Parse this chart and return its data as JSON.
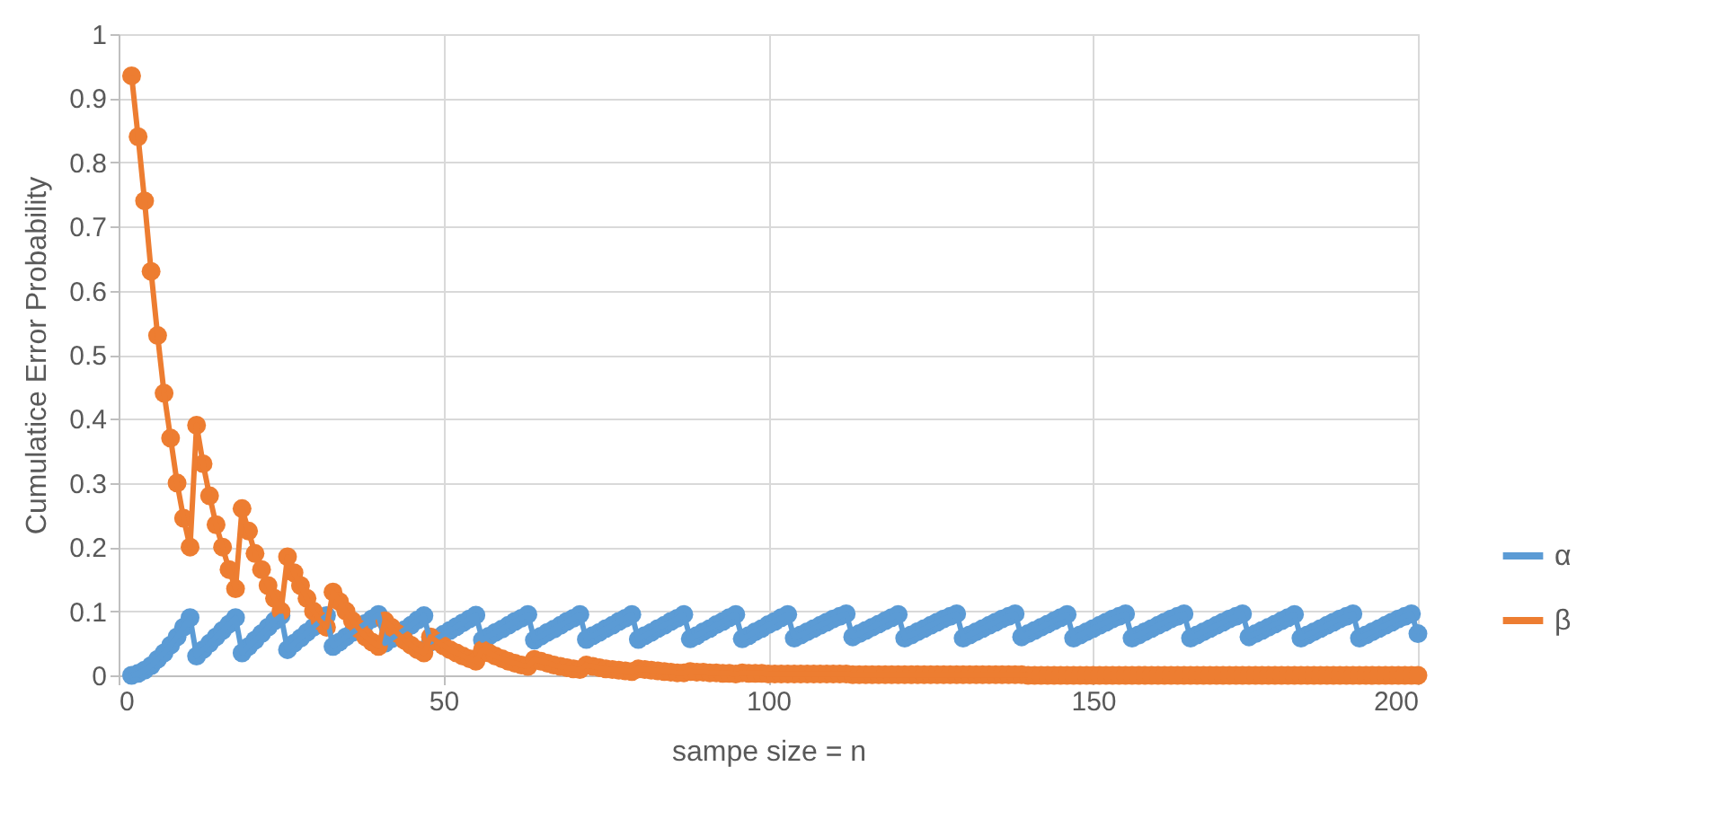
{
  "chart_data": {
    "type": "line",
    "xlabel": "sampe size = n",
    "ylabel": "Cumulatice Error Probability",
    "x": [
      2,
      3,
      4,
      5,
      6,
      7,
      8,
      9,
      10,
      11,
      12,
      13,
      14,
      15,
      16,
      17,
      18,
      19,
      20,
      21,
      22,
      23,
      24,
      25,
      26,
      27,
      28,
      29,
      30,
      31,
      32,
      33,
      34,
      35,
      36,
      37,
      38,
      39,
      40,
      41,
      42,
      43,
      44,
      45,
      46,
      47,
      48,
      49,
      50,
      51,
      52,
      53,
      54,
      55,
      56,
      57,
      58,
      59,
      60,
      61,
      62,
      63,
      64,
      65,
      66,
      67,
      68,
      69,
      70,
      71,
      72,
      73,
      74,
      75,
      76,
      77,
      78,
      79,
      80,
      81,
      82,
      83,
      84,
      85,
      86,
      87,
      88,
      89,
      90,
      91,
      92,
      93,
      94,
      95,
      96,
      97,
      98,
      99,
      100,
      101,
      102,
      103,
      104,
      105,
      106,
      107,
      108,
      109,
      110,
      111,
      112,
      113,
      114,
      115,
      116,
      117,
      118,
      119,
      120,
      121,
      122,
      123,
      124,
      125,
      126,
      127,
      128,
      129,
      130,
      131,
      132,
      133,
      134,
      135,
      136,
      137,
      138,
      139,
      140,
      141,
      142,
      143,
      144,
      145,
      146,
      147,
      148,
      149,
      150,
      151,
      152,
      153,
      154,
      155,
      156,
      157,
      158,
      159,
      160,
      161,
      162,
      163,
      164,
      165,
      166,
      167,
      168,
      169,
      170,
      171,
      172,
      173,
      174,
      175,
      176,
      177,
      178,
      179,
      180,
      181,
      182,
      183,
      184,
      185,
      186,
      187,
      188,
      189,
      190,
      191,
      192,
      193,
      194,
      195,
      196,
      197,
      198,
      199,
      200
    ],
    "series": [
      {
        "name": "α",
        "color": "#5b9bd5",
        "values": [
          0,
          0.003,
          0.008,
          0.015,
          0.025,
          0.035,
          0.047,
          0.06,
          0.075,
          0.09,
          0.03,
          0.04,
          0.05,
          0.06,
          0.07,
          0.08,
          0.09,
          0.035,
          0.045,
          0.055,
          0.065,
          0.075,
          0.085,
          0.093,
          0.04,
          0.05,
          0.058,
          0.067,
          0.075,
          0.085,
          0.093,
          0.045,
          0.052,
          0.06,
          0.067,
          0.074,
          0.081,
          0.088,
          0.095,
          0.05,
          0.057,
          0.064,
          0.071,
          0.078,
          0.086,
          0.093,
          0.052,
          0.058,
          0.064,
          0.07,
          0.076,
          0.082,
          0.088,
          0.094,
          0.055,
          0.061,
          0.067,
          0.072,
          0.078,
          0.084,
          0.089,
          0.095,
          0.055,
          0.061,
          0.067,
          0.072,
          0.078,
          0.084,
          0.089,
          0.095,
          0.056,
          0.062,
          0.067,
          0.073,
          0.078,
          0.084,
          0.089,
          0.095,
          0.056,
          0.062,
          0.067,
          0.073,
          0.078,
          0.084,
          0.089,
          0.095,
          0.057,
          0.062,
          0.068,
          0.073,
          0.079,
          0.084,
          0.09,
          0.095,
          0.057,
          0.062,
          0.068,
          0.073,
          0.079,
          0.084,
          0.09,
          0.095,
          0.058,
          0.063,
          0.068,
          0.073,
          0.078,
          0.083,
          0.088,
          0.092,
          0.096,
          0.06,
          0.065,
          0.07,
          0.075,
          0.08,
          0.085,
          0.09,
          0.095,
          0.058,
          0.063,
          0.068,
          0.073,
          0.078,
          0.083,
          0.088,
          0.092,
          0.096,
          0.058,
          0.063,
          0.068,
          0.073,
          0.078,
          0.083,
          0.088,
          0.092,
          0.096,
          0.06,
          0.065,
          0.07,
          0.075,
          0.08,
          0.085,
          0.09,
          0.095,
          0.058,
          0.063,
          0.068,
          0.073,
          0.078,
          0.083,
          0.088,
          0.092,
          0.096,
          0.058,
          0.063,
          0.068,
          0.073,
          0.078,
          0.083,
          0.088,
          0.092,
          0.096,
          0.058,
          0.063,
          0.068,
          0.073,
          0.078,
          0.083,
          0.088,
          0.092,
          0.096,
          0.06,
          0.065,
          0.07,
          0.075,
          0.08,
          0.085,
          0.09,
          0.095,
          0.058,
          0.063,
          0.068,
          0.073,
          0.078,
          0.083,
          0.088,
          0.092,
          0.096,
          0.058,
          0.063,
          0.068,
          0.073,
          0.078,
          0.083,
          0.088,
          0.092,
          0.096,
          0.065
        ]
      },
      {
        "name": "β",
        "color": "#ed7d31",
        "values": [
          0.935,
          0.84,
          0.74,
          0.63,
          0.53,
          0.44,
          0.37,
          0.3,
          0.245,
          0.2,
          0.39,
          0.33,
          0.28,
          0.235,
          0.2,
          0.165,
          0.135,
          0.26,
          0.225,
          0.19,
          0.165,
          0.14,
          0.12,
          0.1,
          0.185,
          0.16,
          0.14,
          0.12,
          0.1,
          0.085,
          0.075,
          0.13,
          0.115,
          0.1,
          0.085,
          0.072,
          0.06,
          0.052,
          0.045,
          0.085,
          0.075,
          0.065,
          0.055,
          0.047,
          0.04,
          0.035,
          0.06,
          0.053,
          0.046,
          0.04,
          0.035,
          0.03,
          0.026,
          0.022,
          0.04,
          0.035,
          0.03,
          0.026,
          0.022,
          0.019,
          0.016,
          0.014,
          0.025,
          0.022,
          0.019,
          0.016,
          0.014,
          0.012,
          0.01,
          0.009,
          0.016,
          0.014,
          0.012,
          0.01,
          0.009,
          0.008,
          0.007,
          0.006,
          0.01,
          0.009,
          0.008,
          0.007,
          0.006,
          0.005,
          0.004,
          0.004,
          0.006,
          0.005,
          0.005,
          0.004,
          0.004,
          0.003,
          0.003,
          0.002,
          0.004,
          0.003,
          0.003,
          0.003,
          0.002,
          0.002,
          0.002,
          0.002,
          0.002,
          0.002,
          0.002,
          0.002,
          0.002,
          0.002,
          0.002,
          0.002,
          0.002,
          0.001,
          0.001,
          0.001,
          0.001,
          0.001,
          0.001,
          0.001,
          0.001,
          0.001,
          0.001,
          0.001,
          0.001,
          0.001,
          0.001,
          0.001,
          0.001,
          0.001,
          0.001,
          0.001,
          0.001,
          0.001,
          0.001,
          0.001,
          0.001,
          0.001,
          0.001,
          0.001,
          0,
          0,
          0,
          0,
          0,
          0,
          0,
          0,
          0,
          0,
          0,
          0,
          0,
          0,
          0,
          0,
          0,
          0,
          0,
          0,
          0,
          0,
          0,
          0,
          0,
          0,
          0,
          0,
          0,
          0,
          0,
          0,
          0,
          0,
          0,
          0,
          0,
          0,
          0,
          0,
          0,
          0,
          0,
          0,
          0,
          0,
          0,
          0,
          0,
          0,
          0,
          0,
          0,
          0,
          0,
          0,
          0,
          0,
          0,
          0,
          0
        ]
      }
    ],
    "xlim": [
      0,
      200
    ],
    "xticks": [
      0,
      50,
      100,
      150,
      200
    ],
    "ylim": [
      0,
      1
    ],
    "yticks": [
      0,
      0.1,
      0.2,
      0.3,
      0.4,
      0.5,
      0.6,
      0.7,
      0.8,
      0.9,
      1
    ],
    "grid": true,
    "legend": "right",
    "marker": "circle",
    "line_style": "solid"
  }
}
